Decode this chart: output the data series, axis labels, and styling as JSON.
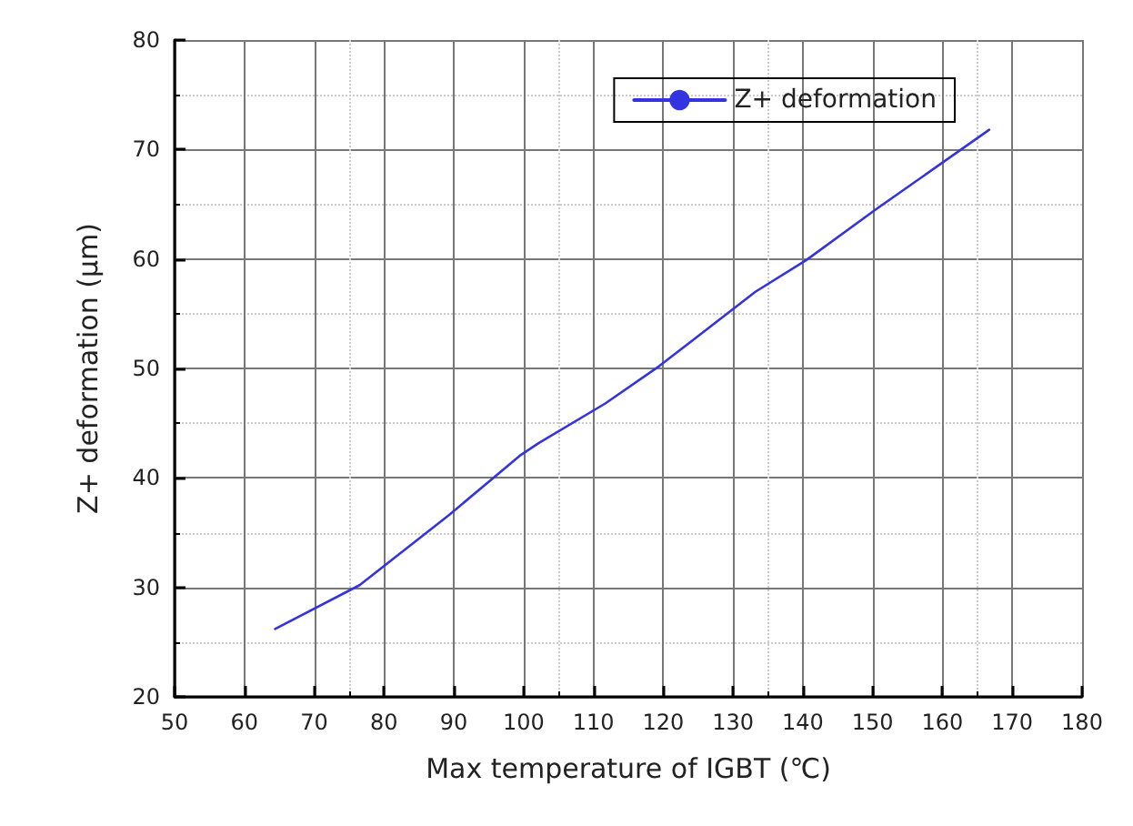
{
  "chart_data": {
    "type": "line",
    "xlabel": "Max temperature of IGBT (℃)",
    "ylabel": "Z+ deformation (μm)",
    "x": [
      64.4,
      76.5,
      89.3,
      99.6,
      102.2,
      111.7,
      119.4,
      133.2,
      140.5,
      150.4,
      166.7
    ],
    "series": [
      {
        "name": "Z+ deformation",
        "color": "#3333e0",
        "values": [
          26.2,
          30.2,
          36.6,
          42.1,
          43.2,
          46.8,
          50.2,
          57.0,
          59.9,
          64.5,
          71.8
        ]
      }
    ],
    "xlim": [
      50,
      180
    ],
    "xticks": [
      50,
      60,
      70,
      80,
      90,
      100,
      110,
      120,
      130,
      140,
      150,
      160,
      170,
      180
    ],
    "ylim": [
      20,
      80
    ],
    "yticks": [
      20,
      30,
      40,
      50,
      60,
      70,
      80
    ],
    "grid": true,
    "legend": "top right",
    "marker": "none",
    "line_style": "solid"
  }
}
